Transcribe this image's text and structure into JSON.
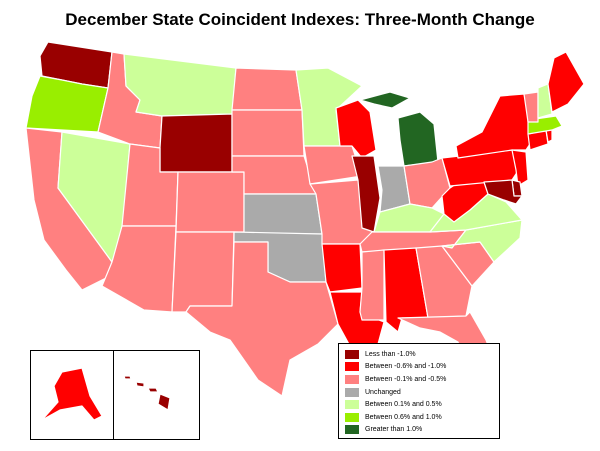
{
  "title": "December State Coincident Indexes: Three-Month Change",
  "colors": {
    "less_than_neg_1": "#990000",
    "neg_0_6_to_neg_1": "#ff0000",
    "neg_0_1_to_neg_0_5": "#ff8080",
    "unchanged": "#aaaaaa",
    "pos_0_1_to_0_5": "#ccff99",
    "pos_0_6_to_1": "#99ee00",
    "greater_than_1": "#226622"
  },
  "legend": [
    {
      "key": "less_than_neg_1",
      "label": "Less than -1.0%"
    },
    {
      "key": "neg_0_6_to_neg_1",
      "label": "Between -0.6% and -1.0%"
    },
    {
      "key": "neg_0_1_to_neg_0_5",
      "label": "Between -0.1% and -0.5%"
    },
    {
      "key": "unchanged",
      "label": "Unchanged"
    },
    {
      "key": "pos_0_1_to_0_5",
      "label": "Between 0.1% and 0.5%"
    },
    {
      "key": "pos_0_6_to_1",
      "label": "Between 0.6% and 1.0%"
    },
    {
      "key": "greater_than_1",
      "label": "Greater than 1.0%"
    }
  ],
  "states": {
    "WA": "less_than_neg_1",
    "OR": "pos_0_6_to_1",
    "CA": "neg_0_1_to_neg_0_5",
    "NV": "pos_0_1_to_0_5",
    "ID": "neg_0_1_to_neg_0_5",
    "MT": "pos_0_1_to_0_5",
    "WY": "less_than_neg_1",
    "UT": "neg_0_1_to_neg_0_5",
    "AZ": "neg_0_1_to_neg_0_5",
    "CO": "neg_0_1_to_neg_0_5",
    "NM": "neg_0_1_to_neg_0_5",
    "ND": "neg_0_1_to_neg_0_5",
    "SD": "neg_0_1_to_neg_0_5",
    "NE": "neg_0_1_to_neg_0_5",
    "KS": "unchanged",
    "OK": "unchanged",
    "TX": "neg_0_1_to_neg_0_5",
    "MN": "pos_0_1_to_0_5",
    "IA": "neg_0_1_to_neg_0_5",
    "MO": "neg_0_1_to_neg_0_5",
    "AR": "neg_0_6_to_neg_1",
    "LA": "neg_0_6_to_neg_1",
    "WI": "neg_0_6_to_neg_1",
    "IL": "less_than_neg_1",
    "MI": "greater_than_1",
    "IN": "unchanged",
    "OH": "neg_0_1_to_neg_0_5",
    "KY": "pos_0_1_to_0_5",
    "TN": "neg_0_1_to_neg_0_5",
    "MS": "neg_0_1_to_neg_0_5",
    "AL": "neg_0_6_to_neg_1",
    "GA": "neg_0_1_to_neg_0_5",
    "FL": "neg_0_1_to_neg_0_5",
    "SC": "neg_0_1_to_neg_0_5",
    "NC": "pos_0_1_to_0_5",
    "VA": "pos_0_1_to_0_5",
    "WV": "neg_0_6_to_neg_1",
    "PA": "neg_0_6_to_neg_1",
    "NY": "neg_0_6_to_neg_1",
    "ME": "neg_0_6_to_neg_1",
    "VT": "neg_0_1_to_neg_0_5",
    "NH": "pos_0_1_to_0_5",
    "MA": "pos_0_6_to_1",
    "CT": "neg_0_6_to_neg_1",
    "RI": "neg_0_6_to_neg_1",
    "NJ": "neg_0_6_to_neg_1",
    "DE": "less_than_neg_1",
    "MD": "less_than_neg_1",
    "AK": "neg_0_6_to_neg_1",
    "HI": "less_than_neg_1"
  }
}
